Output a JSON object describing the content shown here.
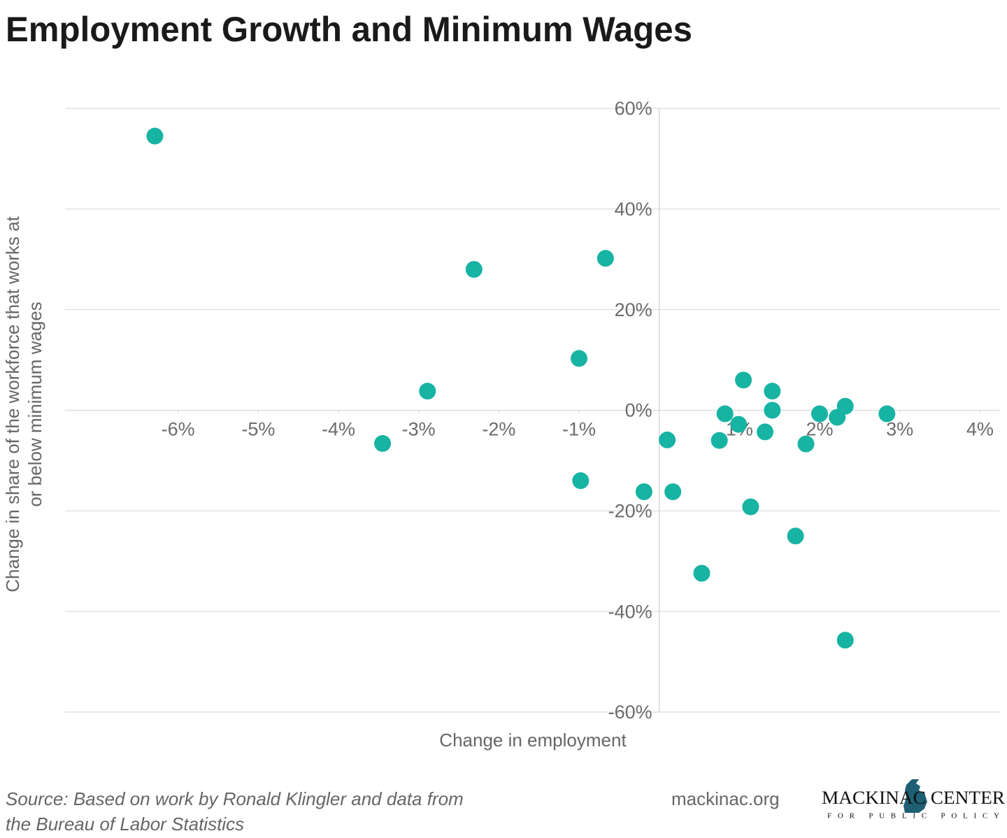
{
  "chart_data": {
    "type": "scatter",
    "title": "Employment Growth and Minimum Wages",
    "xlabel": "Change in employment",
    "ylabel": [
      "Change in share of the workforce that works at",
      "or below minimum wages"
    ],
    "color": "#17b3a3",
    "grid": true,
    "xlim": [
      -7.41,
      4.25
    ],
    "ylim": [
      -60,
      60
    ],
    "xticks": [
      {
        "value": -6,
        "label": "-6%"
      },
      {
        "value": -5,
        "label": "-5%"
      },
      {
        "value": -4,
        "label": "-4%"
      },
      {
        "value": -3,
        "label": "-3%"
      },
      {
        "value": -2,
        "label": "-2%"
      },
      {
        "value": -1,
        "label": "-1%"
      },
      {
        "value": 1,
        "label": "1%"
      },
      {
        "value": 2,
        "label": "2%"
      },
      {
        "value": 3,
        "label": "3%"
      },
      {
        "value": 4,
        "label": "4%"
      }
    ],
    "yticks": [
      {
        "value": 60,
        "label": "60%"
      },
      {
        "value": 40,
        "label": "40%"
      },
      {
        "value": 20,
        "label": "20%"
      },
      {
        "value": 0,
        "label": "0%"
      },
      {
        "value": -20,
        "label": "-20%"
      },
      {
        "value": -40,
        "label": "-40%"
      },
      {
        "value": -60,
        "label": "-60%"
      }
    ],
    "x": [
      -6.29,
      -2.31,
      -0.67,
      -1.0,
      -2.89,
      -3.45,
      -0.98,
      -0.19,
      0.1,
      0.17,
      0.53,
      0.75,
      0.82,
      0.99,
      1.05,
      1.32,
      1.14,
      1.41,
      1.41,
      1.7,
      1.83,
      2.0,
      2.22,
      2.32,
      2.32,
      2.84
    ],
    "values": [
      54.5,
      28.0,
      30.2,
      10.3,
      3.8,
      -6.6,
      -14.0,
      -16.2,
      -5.9,
      -16.2,
      -32.4,
      -6.0,
      -0.7,
      -2.8,
      6.0,
      -4.3,
      -19.2,
      3.8,
      0,
      -25.0,
      -6.7,
      -0.7,
      -1.4,
      0.8,
      -45.7,
      -0.7
    ],
    "source": [
      "Source: Based on work by Ronald Klingler and data from",
      "the Bureau of Labor Statistics"
    ],
    "website": "mackinac.org",
    "logo": [
      "MACKINAC CENTER",
      "FOR PUBLIC POLICY"
    ]
  }
}
